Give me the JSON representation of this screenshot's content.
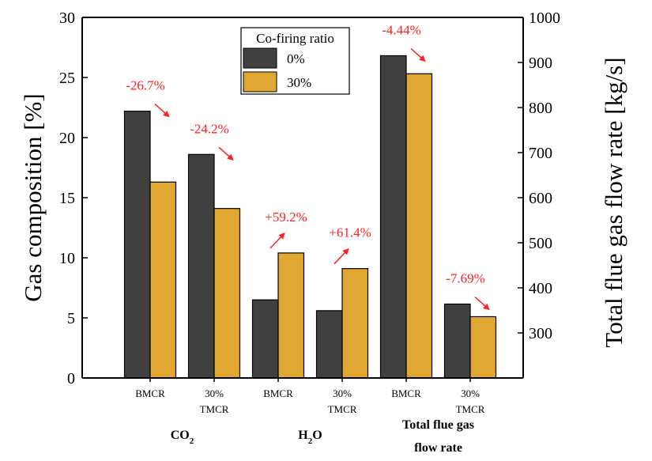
{
  "chart_data": {
    "type": "bar",
    "left_axis": {
      "label": "Gas composition [%]",
      "ylim": [
        0,
        30
      ],
      "ticks": [
        0,
        5,
        10,
        15,
        20,
        25,
        30
      ]
    },
    "right_axis": {
      "label": "Total flue gas flow rate [kg/s]",
      "ylim": [
        200,
        1000
      ],
      "ticks": [
        300,
        400,
        500,
        600,
        700,
        800,
        900,
        1000
      ]
    },
    "categories": [
      {
        "line1": "BMCR",
        "line2": ""
      },
      {
        "line1": "30%",
        "line2": "TMCR"
      },
      {
        "line1": "BMCR",
        "line2": ""
      },
      {
        "line1": "30%",
        "line2": "TMCR"
      },
      {
        "line1": "BMCR",
        "line2": ""
      },
      {
        "line1": "30%",
        "line2": "TMCR"
      }
    ],
    "category_axis": [
      "left",
      "left",
      "left",
      "left",
      "right",
      "right"
    ],
    "series": [
      {
        "name": "0%",
        "color": "#404040",
        "values": [
          22.2,
          18.6,
          6.5,
          5.6,
          915,
          364
        ]
      },
      {
        "name": "30%",
        "color": "#E0A830",
        "values": [
          16.3,
          14.1,
          10.4,
          9.1,
          875,
          336
        ]
      }
    ],
    "groups": [
      {
        "label": "CO",
        "sub": "2",
        "categories": [
          0,
          1
        ]
      },
      {
        "label": "H",
        "sub": "2",
        "tail": "O",
        "categories": [
          2,
          3
        ]
      },
      {
        "label": "Total flue gas",
        "label2": "flow rate",
        "categories": [
          4,
          5
        ]
      }
    ],
    "annotations": [
      "-26.7%",
      "-24.2%",
      "+59.2%",
      "+61.4%",
      "-4.44%",
      "-7.69%"
    ],
    "annotation_color": "#FF2020",
    "legend": {
      "title": "Co-firing ratio",
      "position": "top-center"
    }
  }
}
